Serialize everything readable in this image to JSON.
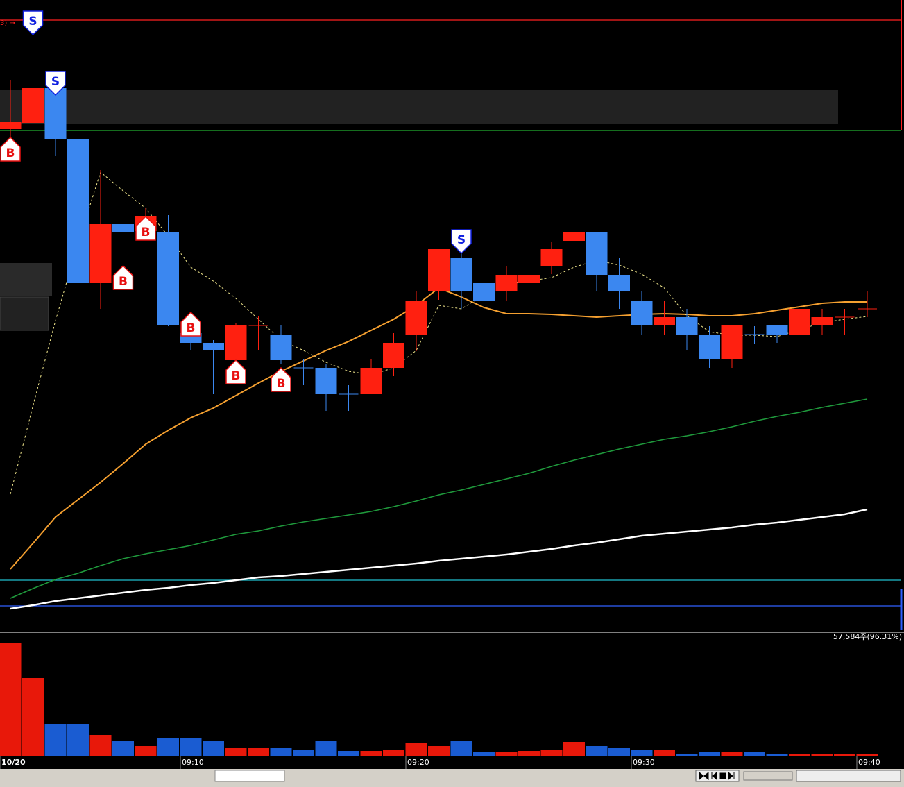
{
  "chart_data": {
    "type": "candlestick",
    "annotation": "3) →",
    "categories": [
      "10/20",
      null,
      null,
      null,
      null,
      null,
      null,
      null,
      "09:10",
      null,
      null,
      null,
      null,
      null,
      null,
      null,
      null,
      null,
      "09:20",
      null,
      null,
      null,
      null,
      null,
      null,
      null,
      null,
      null,
      "09:30",
      null,
      null,
      null,
      null,
      null,
      null,
      null,
      null,
      null,
      "09:40"
    ],
    "open": [
      724,
      733,
      783,
      710,
      502,
      587,
      577,
      575,
      430,
      416,
      391,
      441,
      428,
      380,
      380,
      342,
      342,
      380,
      428,
      490,
      538,
      502,
      490,
      502,
      526,
      563,
      575,
      514,
      477,
      441,
      453,
      428,
      392,
      428,
      441,
      428,
      441,
      453,
      465
    ],
    "high": [
      795,
      880,
      795,
      735,
      665,
      612,
      610,
      600,
      445,
      420,
      445,
      455,
      442,
      392,
      385,
      355,
      392,
      430,
      490,
      551,
      550,
      515,
      527,
      527,
      562,
      588,
      575,
      538,
      490,
      477,
      465,
      440,
      441,
      440,
      441,
      465,
      465,
      465,
      490
    ],
    "low": [
      695,
      710,
      685,
      490,
      465,
      505,
      570,
      440,
      405,
      342,
      385,
      405,
      385,
      355,
      318,
      318,
      342,
      368,
      404,
      478,
      465,
      453,
      477,
      502,
      515,
      550,
      490,
      465,
      428,
      428,
      405,
      380,
      380,
      415,
      416,
      428,
      428,
      428,
      453
    ],
    "close": [
      734,
      783,
      710,
      502,
      587,
      575,
      599,
      441,
      416,
      405,
      441,
      441,
      391,
      380,
      342,
      342,
      380,
      416,
      477,
      551,
      490,
      477,
      514,
      514,
      551,
      575,
      514,
      490,
      441,
      453,
      428,
      392,
      441,
      428,
      428,
      465,
      453,
      453,
      465
    ],
    "colors": [
      "#ff2010",
      "#ff2010",
      "#3b87f0",
      "#3b87f0",
      "#ff2010",
      "#3b87f0",
      "#ff2010",
      "#3b87f0",
      "#3b87f0",
      "#3b87f0",
      "#ff2010",
      "#ff2010",
      "#3b87f0",
      "#3b87f0",
      "#3b87f0",
      "#3b87f0",
      "#ff2010",
      "#ff2010",
      "#ff2010",
      "#ff2010",
      "#3b87f0",
      "#3b87f0",
      "#ff2010",
      "#ff2010",
      "#ff2010",
      "#ff2010",
      "#3b87f0",
      "#3b87f0",
      "#3b87f0",
      "#ff2010",
      "#3b87f0",
      "#3b87f0",
      "#ff2010",
      "#3b87f0",
      "#3b87f0",
      "#ff2010",
      "#ff2010",
      "#ff2010",
      "#ff2010"
    ],
    "ylim": [
      0,
      910
    ],
    "lines": [
      {
        "color": "#ffffff",
        "width": 2.5,
        "values": [
          33,
          38,
          44,
          48,
          52,
          56,
          60,
          63,
          67,
          70,
          74,
          78,
          80,
          83,
          86,
          89,
          92,
          95,
          98,
          102,
          105,
          108,
          111,
          115,
          119,
          124,
          128,
          133,
          138,
          141,
          144,
          147,
          150,
          154,
          157,
          161,
          165,
          169,
          176
        ]
      },
      {
        "color": "#1f9a3c",
        "width": 1.6,
        "values": [
          48,
          62,
          75,
          84,
          95,
          105,
          112,
          118,
          124,
          132,
          140,
          145,
          152,
          158,
          163,
          168,
          173,
          180,
          188,
          197,
          204,
          212,
          220,
          228,
          238,
          247,
          255,
          263,
          270,
          277,
          282,
          288,
          295,
          303,
          310,
          316,
          323,
          329,
          335
        ]
      },
      {
        "color": "#f5a030",
        "width": 2,
        "values": [
          90,
          127,
          165,
          190,
          215,
          242,
          270,
          290,
          308,
          322,
          340,
          358,
          375,
          390,
          405,
          418,
          434,
          450,
          470,
          495,
          482,
          467,
          458,
          458,
          457,
          455,
          453,
          455,
          457,
          458,
          457,
          455,
          455,
          458,
          463,
          468,
          473,
          475,
          475
        ]
      },
      {
        "color": "#f0e68c",
        "width": 1,
        "style": "dashed",
        "values": [
          198,
          325,
          448,
          560,
          662,
          635,
          610,
          570,
          525,
          505,
          480,
          450,
          420,
          405,
          388,
          375,
          370,
          380,
          405,
          470,
          465,
          485,
          500,
          505,
          510,
          525,
          535,
          528,
          515,
          495,
          455,
          432,
          427,
          427,
          425,
          435,
          445,
          450,
          454
        ]
      }
    ],
    "hlines": [
      {
        "value": 881,
        "color": "#ff2020"
      },
      {
        "value": 722,
        "color": "#22b030"
      },
      {
        "value": 74,
        "color": "#20c0d0"
      },
      {
        "value": 37,
        "color": "#3060ff"
      }
    ],
    "signals": [
      {
        "label": "B",
        "index": 0,
        "value": 712
      },
      {
        "label": "S",
        "index": 1,
        "value": 860
      },
      {
        "label": "S",
        "index": 2,
        "value": 773
      },
      {
        "label": "B",
        "index": 5,
        "value": 527
      },
      {
        "label": "B",
        "index": 6,
        "value": 598
      },
      {
        "label": "B",
        "index": 8,
        "value": 460
      },
      {
        "label": "B",
        "index": 10,
        "value": 391
      },
      {
        "label": "B",
        "index": 12,
        "value": 380
      },
      {
        "label": "S",
        "index": 20,
        "value": 545
      }
    ],
    "volume": {
      "annotation": "57,584주(96.31%)",
      "ylim": [
        0,
        178
      ],
      "values": [
        164,
        113,
        47,
        47,
        31,
        22,
        15,
        27,
        27,
        22,
        12,
        12,
        12,
        10,
        22,
        8,
        8,
        10,
        19,
        15,
        22,
        6,
        6,
        8,
        10,
        21,
        15,
        12,
        10,
        10,
        4,
        7,
        7,
        6,
        3,
        3,
        4,
        3,
        4
      ],
      "colors": [
        "#e8180a",
        "#e8180a",
        "#1a5cd2",
        "#1a5cd2",
        "#e8180a",
        "#1a5cd2",
        "#e8180a",
        "#1a5cd2",
        "#1a5cd2",
        "#1a5cd2",
        "#e8180a",
        "#e8180a",
        "#1a5cd2",
        "#1a5cd2",
        "#1a5cd2",
        "#1a5cd2",
        "#e8180a",
        "#e8180a",
        "#e8180a",
        "#e8180a",
        "#1a5cd2",
        "#1a5cd2",
        "#e8180a",
        "#e8180a",
        "#e8180a",
        "#e8180a",
        "#1a5cd2",
        "#1a5cd2",
        "#1a5cd2",
        "#e8180a",
        "#1a5cd2",
        "#1a5cd2",
        "#e8180a",
        "#1a5cd2",
        "#1a5cd2",
        "#e8180a",
        "#e8180a",
        "#e8180a",
        "#e8180a"
      ]
    }
  }
}
